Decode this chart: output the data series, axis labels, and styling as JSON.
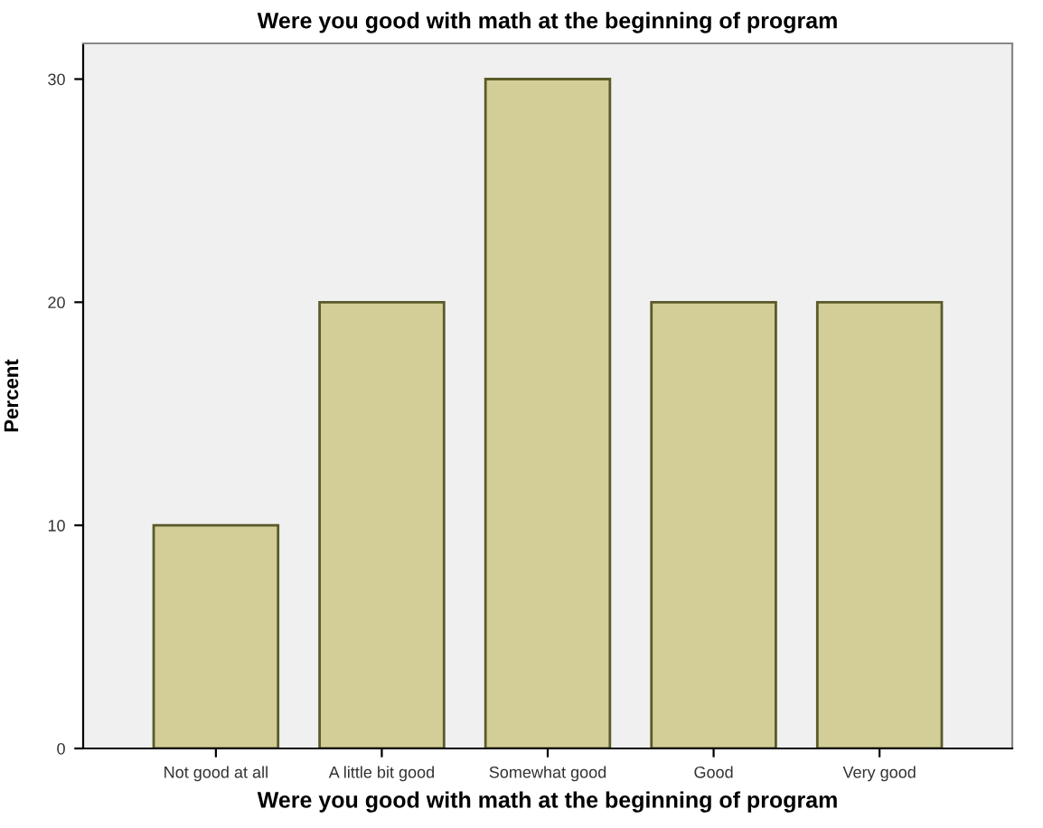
{
  "chart_data": {
    "type": "bar",
    "title": "Were you good with math at the beginning of program",
    "xlabel": "Were you good with math at the beginning of program",
    "ylabel": "Percent",
    "categories": [
      "Not good at all",
      "A little bit good",
      "Somewhat good",
      "Good",
      "Very good"
    ],
    "values": [
      10,
      20,
      30,
      20,
      20
    ],
    "color": "#d3ce98",
    "ylim": [
      0,
      31.6
    ],
    "yticks": [
      0,
      10,
      20,
      30
    ],
    "grid": false,
    "legend": false
  }
}
